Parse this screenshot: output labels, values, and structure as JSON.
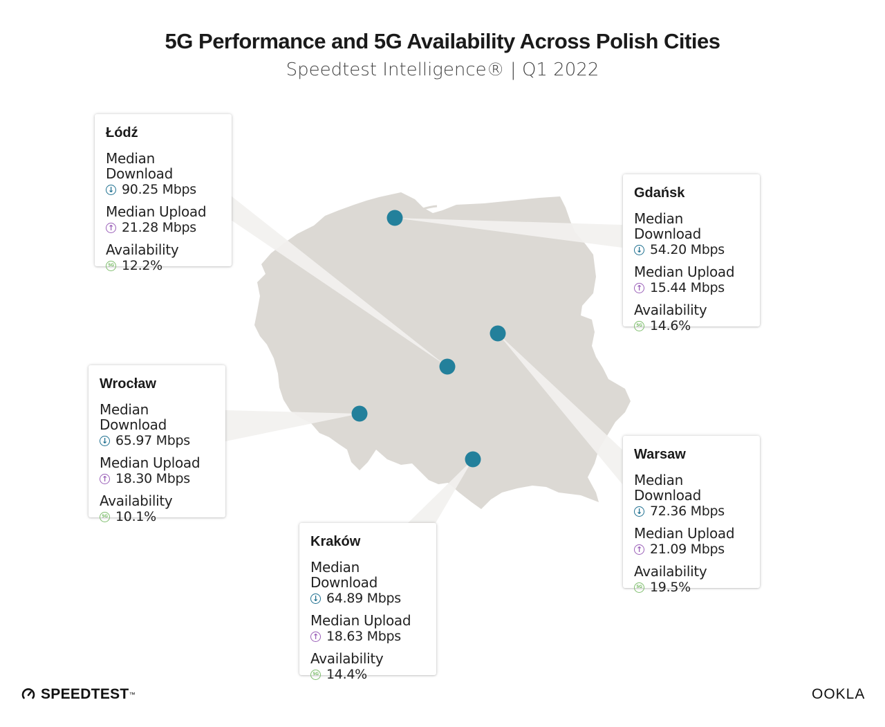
{
  "header": {
    "title": "5G Performance and 5G Availability Across Polish Cities",
    "subtitle": "Speedtest Intelligence® | Q1 2022"
  },
  "map": {
    "country_color": "#dcd9d4",
    "marker_color": "#23809b"
  },
  "metric_labels": {
    "download": "Median Download",
    "upload": "Median Upload",
    "availability": "Availability"
  },
  "icons": {
    "download": "arrow-down-circle-icon",
    "upload": "arrow-up-circle-icon",
    "availability": "5g-circle-icon",
    "download_color": "#1d6f8f",
    "upload_color": "#9a5fb8",
    "availability_color": "#7fbe6e"
  },
  "cities": [
    {
      "id": "lodz",
      "name": "Łódź",
      "download": "90.25 Mbps",
      "upload": "21.28 Mbps",
      "availability": "12.2%"
    },
    {
      "id": "gdansk",
      "name": "Gdańsk",
      "download": "54.20 Mbps",
      "upload": "15.44 Mbps",
      "availability": "14.6%"
    },
    {
      "id": "wroclaw",
      "name": "Wrocław",
      "download": "65.97 Mbps",
      "upload": "18.30 Mbps",
      "availability": "10.1%"
    },
    {
      "id": "warsaw",
      "name": "Warsaw",
      "download": "72.36 Mbps",
      "upload": "21.09 Mbps",
      "availability": "19.5%"
    },
    {
      "id": "krakow",
      "name": "Kraków",
      "download": "64.89 Mbps",
      "upload": "18.63 Mbps",
      "availability": "14.4%"
    }
  ],
  "footer": {
    "left_brand": "SPEEDTEST",
    "left_brand_mark": "™",
    "right_brand": "OOKLA"
  }
}
